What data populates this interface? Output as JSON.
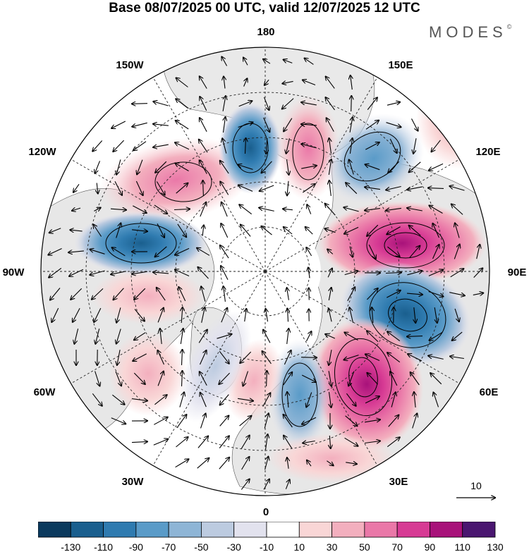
{
  "title": "Base 08/07/2025 00 UTC, valid 12/07/2025 12 UTC",
  "brand": "MODES",
  "brand_mark": "©",
  "longitude_labels": {
    "lon_180": "180",
    "lon_150e": "150E",
    "lon_120e": "120E",
    "lon_90e": "90E",
    "lon_60e": "60E",
    "lon_30e": "30E",
    "lon_0": "0",
    "lon_30w": "30W",
    "lon_60w": "60W",
    "lon_90w": "90W",
    "lon_120w": "120W",
    "lon_150w": "150W"
  },
  "vector_reference": {
    "label": "10"
  },
  "colorbar": {
    "tick_labels": [
      "-130",
      "-110",
      "-90",
      "-70",
      "-50",
      "-30",
      "-10",
      "10",
      "30",
      "50",
      "70",
      "90",
      "110",
      "130"
    ],
    "colors": [
      "#0b3a5e",
      "#1a5f8e",
      "#2f7bb0",
      "#5a9bc8",
      "#8eb5d6",
      "#bccbe0",
      "#e2e2ee",
      "#ffffff",
      "#f9d6d6",
      "#f3afbe",
      "#ea78a8",
      "#d73b94",
      "#a8127a",
      "#4a1670"
    ]
  },
  "map_legend": {
    "field": "anomaly",
    "projection": "north polar stereographic",
    "background_colors": {
      "land": "#e7e7e7",
      "ocean": "#ffffff"
    },
    "anomaly_centers": [
      {
        "name": "pos-150w",
        "sign": "positive",
        "level": 70
      },
      {
        "name": "neg-180",
        "sign": "negative",
        "level": -90
      },
      {
        "name": "pos-170e",
        "sign": "positive",
        "level": 70
      },
      {
        "name": "neg-140e",
        "sign": "negative",
        "level": -70
      },
      {
        "name": "pos-105e",
        "sign": "positive",
        "level": 110
      },
      {
        "name": "neg-80e",
        "sign": "negative",
        "level": -110
      },
      {
        "name": "pos-50e",
        "sign": "positive",
        "level": 110
      },
      {
        "name": "neg-20e",
        "sign": "negative",
        "level": -90
      },
      {
        "name": "pos-0",
        "sign": "positive",
        "level": 50
      },
      {
        "name": "neg-30w",
        "sign": "negative",
        "level": -50
      },
      {
        "name": "pos-60w",
        "sign": "positive",
        "level": 50
      },
      {
        "name": "pos-100w",
        "sign": "positive",
        "level": 30
      },
      {
        "name": "neg-120w",
        "sign": "negative",
        "level": -90
      }
    ]
  }
}
